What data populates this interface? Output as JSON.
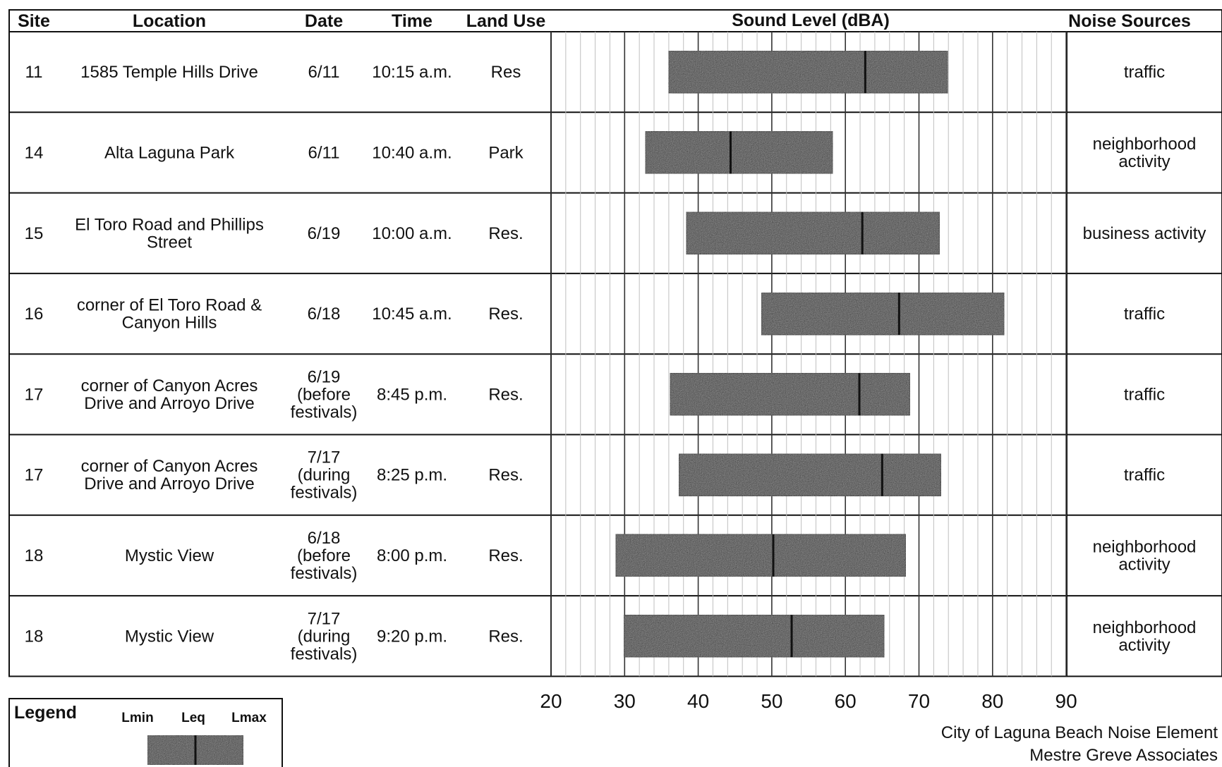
{
  "headers": {
    "site": "Site",
    "location": "Location",
    "date": "Date",
    "time": "Time",
    "land_use": "Land Use",
    "sound_level": "Sound Level (dBA)",
    "noise_sources": "Noise Sources"
  },
  "rows": [
    {
      "site": "11",
      "location": [
        "1585 Temple Hills Drive"
      ],
      "date": [
        "6/11"
      ],
      "time": "10:15 a.m.",
      "land_use": "Res",
      "noise_sources": [
        "traffic"
      ]
    },
    {
      "site": "14",
      "location": [
        "Alta Laguna Park"
      ],
      "date": [
        "6/11"
      ],
      "time": "10:40 a.m.",
      "land_use": "Park",
      "noise_sources": [
        "neighborhood",
        "activity"
      ]
    },
    {
      "site": "15",
      "location": [
        "El Toro Road and Phillips",
        "Street"
      ],
      "date": [
        "6/19"
      ],
      "time": "10:00 a.m.",
      "land_use": "Res.",
      "noise_sources": [
        "business activity"
      ]
    },
    {
      "site": "16",
      "location": [
        "corner of El Toro Road &",
        "Canyon Hills"
      ],
      "date": [
        "6/18"
      ],
      "time": "10:45 a.m.",
      "land_use": "Res.",
      "noise_sources": [
        "traffic"
      ]
    },
    {
      "site": "17",
      "location": [
        "corner of Canyon Acres",
        "Drive and Arroyo Drive"
      ],
      "date": [
        "6/19",
        "(before",
        "festivals)"
      ],
      "time": "8:45 p.m.",
      "land_use": "Res.",
      "noise_sources": [
        "traffic"
      ]
    },
    {
      "site": "17",
      "location": [
        "corner of Canyon Acres",
        "Drive and Arroyo Drive"
      ],
      "date": [
        "7/17",
        "(during",
        "festivals)"
      ],
      "time": "8:25 p.m.",
      "land_use": "Res.",
      "noise_sources": [
        "traffic"
      ]
    },
    {
      "site": "18",
      "location": [
        "Mystic View"
      ],
      "date": [
        "6/18",
        "(before",
        "festivals)"
      ],
      "time": "8:00 p.m.",
      "land_use": "Res.",
      "noise_sources": [
        "neighborhood",
        "activity"
      ]
    },
    {
      "site": "18",
      "location": [
        "Mystic View"
      ],
      "date": [
        "7/17",
        "(during",
        "festivals)"
      ],
      "time": "9:20 p.m.",
      "land_use": "Res.",
      "noise_sources": [
        "neighborhood",
        "activity"
      ]
    }
  ],
  "chart_data": {
    "type": "bar",
    "orientation": "horizontal",
    "subtype": "range-bar (Lmin to Lmax with Leq marker)",
    "xlim": [
      20,
      90
    ],
    "x_ticks": [
      20,
      30,
      40,
      50,
      60,
      70,
      80,
      90
    ],
    "grid": true,
    "minor_grid_step": 2,
    "bars": [
      {
        "lmin": 36.0,
        "leq": 62.7,
        "lmax": 73.9
      },
      {
        "lmin": 32.8,
        "leq": 44.4,
        "lmax": 58.3
      },
      {
        "lmin": 38.4,
        "leq": 62.3,
        "lmax": 72.8
      },
      {
        "lmin": 48.6,
        "leq": 67.3,
        "lmax": 81.6
      },
      {
        "lmin": 36.2,
        "leq": 61.9,
        "lmax": 68.8
      },
      {
        "lmin": 37.4,
        "leq": 65.0,
        "lmax": 73.0
      },
      {
        "lmin": 28.8,
        "leq": 50.2,
        "lmax": 68.2
      },
      {
        "lmin": 29.9,
        "leq": 52.7,
        "lmax": 65.3
      }
    ]
  },
  "legend": {
    "title": "Legend",
    "lmin": "Lmin",
    "leq": "Leq",
    "lmax": "Lmax"
  },
  "credits": {
    "line1": "City of Laguna Beach Noise Element",
    "line2": "Mestre Greve Associates"
  },
  "colors": {
    "bar_fill": "#3a3a3a",
    "bar_stroke": "#111111",
    "grid_minor": "#bfbfbf",
    "grid_major": "#333333"
  }
}
